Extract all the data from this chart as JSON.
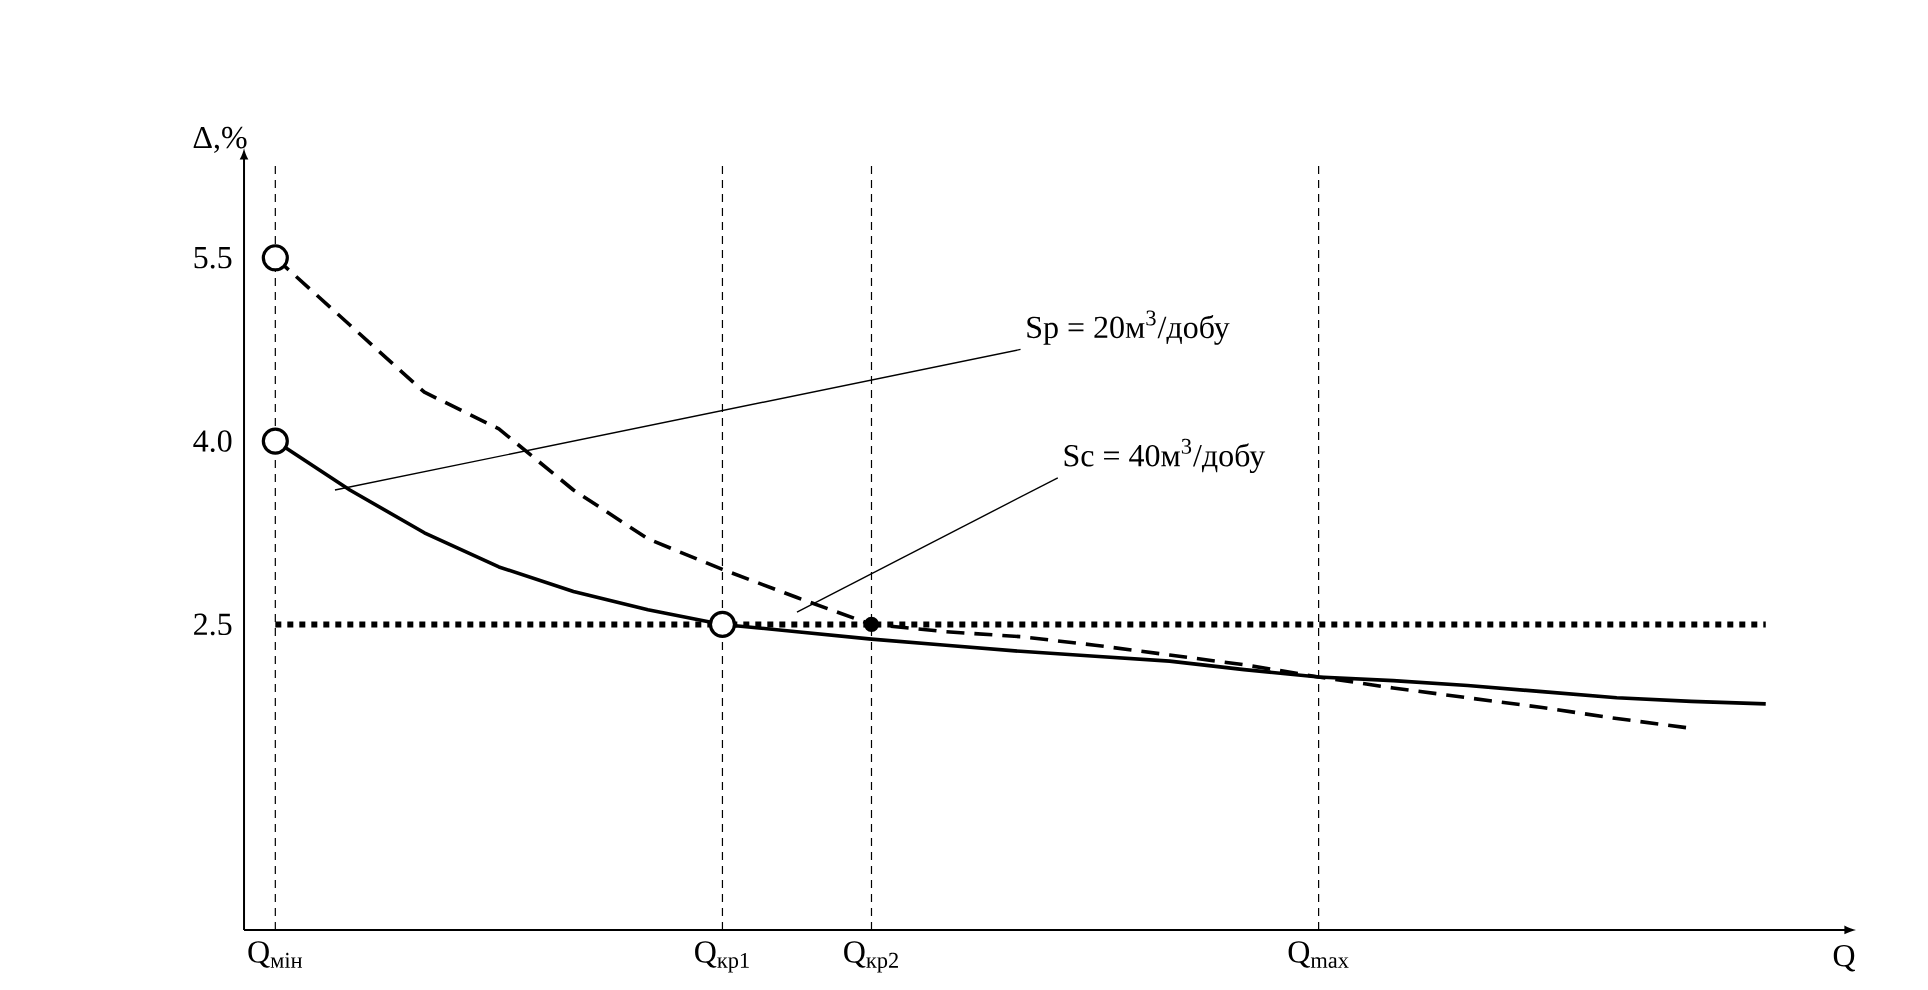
{
  "chart_data": {
    "type": "line",
    "ylabel": "Δ,%",
    "xlabel": "Q",
    "grid": "x",
    "categories": [
      "Q$_{мін}$",
      null,
      null,
      null,
      null,
      null,
      "Q$_{кр1}$",
      null,
      "Q$_{кр2}$",
      null,
      null,
      null,
      null,
      null,
      "Q$_{max}$",
      null,
      null,
      null,
      null,
      null,
      null
    ],
    "ylim": [
      0,
      6.3
    ],
    "yticks": [
      2.5,
      {
        "value": 4,
        "label": "4.0"
      },
      5.5
    ],
    "series": [
      {
        "line_style": "dashed",
        "color": "#000000",
        "values": [
          5.5,
          4.95,
          4.4,
          4.1,
          3.6,
          3.2,
          2.95,
          2.72,
          2.5,
          2.44,
          2.4,
          2.33,
          2.25,
          2.17,
          2.07,
          1.98,
          1.9,
          1.82,
          1.73,
          1.65,
          null
        ]
      },
      {
        "line_style": "solid",
        "color": "#000000",
        "values": [
          4.0,
          3.6,
          3.25,
          2.97,
          2.77,
          2.62,
          2.5,
          2.44,
          2.38,
          2.33,
          2.28,
          2.24,
          2.2,
          2.13,
          2.07,
          2.04,
          2.0,
          1.95,
          1.9,
          1.87,
          1.85
        ]
      },
      {
        "type": "scatter",
        "color": "#000000",
        "values": [
          5.5,
          null,
          null,
          null,
          null,
          null,
          2.5,
          null,
          null,
          null,
          null,
          null,
          null,
          null,
          null,
          null,
          null,
          null,
          null,
          null,
          null
        ]
      },
      {
        "type": "scatter",
        "color": "#000000",
        "values": [
          4.0,
          null,
          null,
          null,
          null,
          null,
          null,
          null,
          null,
          null,
          null,
          null,
          null,
          null,
          null,
          null,
          null,
          null,
          null,
          null,
          null
        ]
      },
      {
        "type": "scatter",
        "color": "#000000",
        "values": [
          null,
          null,
          null,
          null,
          null,
          null,
          null,
          null,
          2.5,
          null,
          null,
          null,
          null,
          null,
          null,
          null,
          null,
          null,
          null,
          null,
          null
        ]
      }
    ],
    "ref_lines": [
      {
        "axis": "y",
        "value": 2.5,
        "line_style": "dotted"
      }
    ],
    "annotations": [
      "Sp = 20м$^{3}$/добу",
      "Sc = 40м$^{3}$/добу"
    ]
  }
}
